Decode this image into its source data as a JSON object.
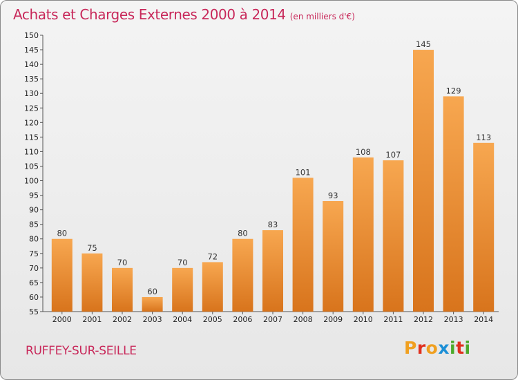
{
  "header": {
    "title": "Achats et Charges Externes 2000 à 2014",
    "subtitle": "(en milliers d'€)"
  },
  "footer": {
    "commune": "RUFFEY-SUR-SEILLE",
    "brand": "Proxiti",
    "brand_letters": [
      {
        "ch": "P",
        "color": "#f0a020"
      },
      {
        "ch": "r",
        "color": "#e0301e"
      },
      {
        "ch": "o",
        "color": "#f0a020"
      },
      {
        "ch": "x",
        "color": "#1c8fd6"
      },
      {
        "ch": "i",
        "color": "#4caa2a"
      },
      {
        "ch": "t",
        "color": "#e0301e"
      },
      {
        "ch": "i",
        "color": "#4caa2a"
      }
    ]
  },
  "chart_data": {
    "type": "bar",
    "categories": [
      "2000",
      "2001",
      "2002",
      "2003",
      "2004",
      "2005",
      "2006",
      "2007",
      "2008",
      "2009",
      "2010",
      "2011",
      "2012",
      "2013",
      "2014"
    ],
    "values": [
      80,
      75,
      70,
      60,
      70,
      72,
      80,
      83,
      101,
      93,
      108,
      107,
      145,
      129,
      113
    ],
    "ylim": [
      55,
      150
    ],
    "yticks": [
      55,
      60,
      65,
      70,
      75,
      80,
      85,
      90,
      95,
      100,
      105,
      110,
      115,
      120,
      125,
      130,
      135,
      140,
      145,
      150
    ],
    "grid": false,
    "colors": {
      "bar_light": "#f7a750",
      "bar_dark": "#d8741c",
      "title": "#c8285a"
    }
  }
}
